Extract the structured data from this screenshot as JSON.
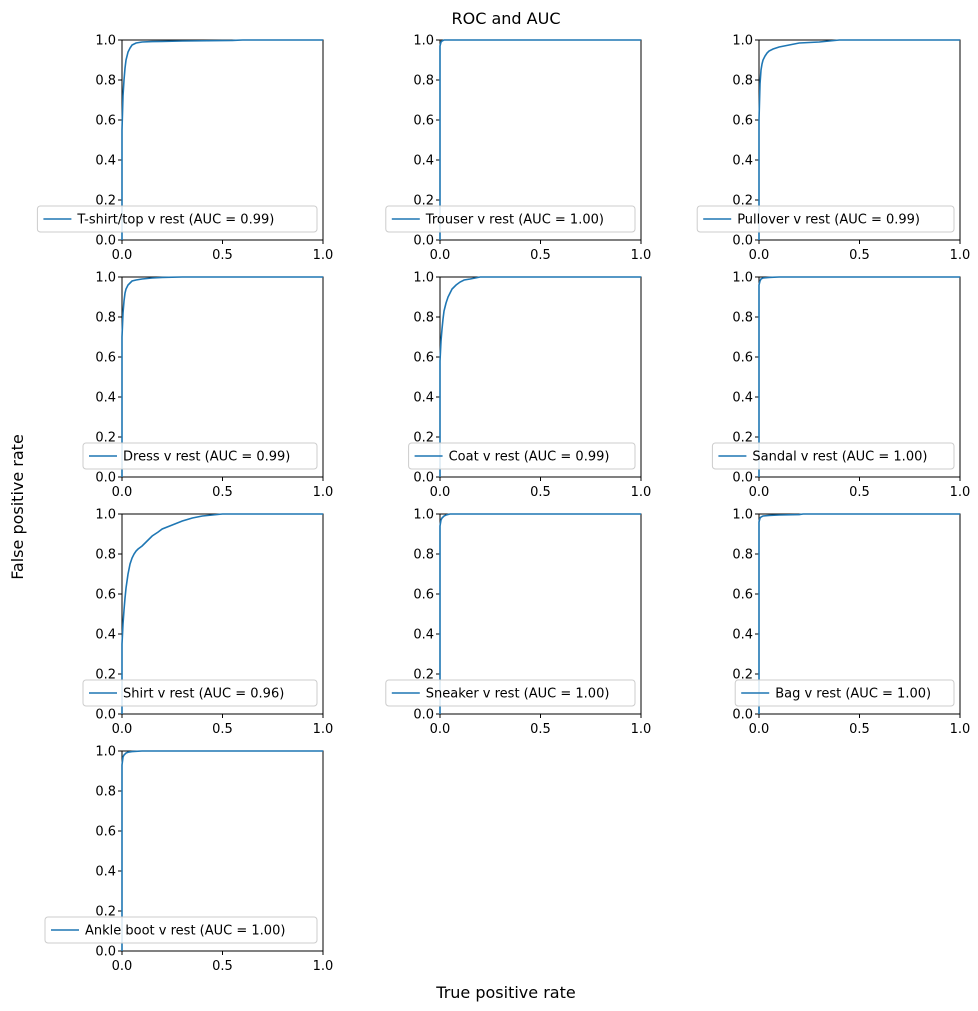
{
  "figure": {
    "title": "ROC and AUC",
    "xlabel": "True positive rate",
    "ylabel": "False positive rate"
  },
  "colors": {
    "line": "#1f77b4",
    "axes": "#000000",
    "legend_border": "#cccccc"
  },
  "chart_data": [
    {
      "type": "line",
      "series": [
        {
          "name": "T-shirt/top v rest (AUC = 0.99)",
          "x": [
            0,
            0,
            0.005,
            0.01,
            0.015,
            0.02,
            0.03,
            0.04,
            0.05,
            0.07,
            0.1,
            0.15,
            0.2,
            0.3,
            0.55,
            0.6,
            1.0
          ],
          "y": [
            0,
            0.55,
            0.72,
            0.8,
            0.86,
            0.9,
            0.94,
            0.96,
            0.975,
            0.985,
            0.99,
            0.992,
            0.993,
            0.995,
            0.998,
            1.0,
            1.0
          ]
        }
      ],
      "xlim": [
        0,
        1
      ],
      "ylim": [
        0,
        1
      ],
      "xticks": [
        "0.0",
        "0.5",
        "1.0"
      ],
      "yticks": [
        "0.0",
        "0.2",
        "0.4",
        "0.6",
        "0.8",
        "1.0"
      ],
      "legend_placement": "lower-right"
    },
    {
      "type": "line",
      "series": [
        {
          "name": "Trouser v rest (AUC = 1.00)",
          "x": [
            0,
            0,
            0.005,
            0.01,
            0.02,
            1.0
          ],
          "y": [
            0,
            0.97,
            0.99,
            0.995,
            1.0,
            1.0
          ]
        }
      ],
      "xlim": [
        0,
        1
      ],
      "ylim": [
        0,
        1
      ],
      "xticks": [
        "0.0",
        "0.5",
        "1.0"
      ],
      "yticks": [
        "0.0",
        "0.2",
        "0.4",
        "0.6",
        "0.8",
        "1.0"
      ],
      "legend_placement": "lower-right"
    },
    {
      "type": "line",
      "series": [
        {
          "name": "Pullover v rest (AUC = 0.99)",
          "x": [
            0,
            0,
            0.005,
            0.01,
            0.015,
            0.02,
            0.03,
            0.04,
            0.05,
            0.07,
            0.1,
            0.15,
            0.2,
            0.3,
            0.35,
            0.4,
            1.0
          ],
          "y": [
            0,
            0.6,
            0.78,
            0.85,
            0.88,
            0.9,
            0.92,
            0.935,
            0.945,
            0.955,
            0.965,
            0.975,
            0.985,
            0.99,
            0.995,
            1.0,
            1.0
          ]
        }
      ],
      "xlim": [
        0,
        1
      ],
      "ylim": [
        0,
        1
      ],
      "xticks": [
        "0.0",
        "0.5",
        "1.0"
      ],
      "yticks": [
        "0.0",
        "0.2",
        "0.4",
        "0.6",
        "0.8",
        "1.0"
      ],
      "legend_placement": "lower-right"
    },
    {
      "type": "line",
      "series": [
        {
          "name": "Dress v rest (AUC = 0.99)",
          "x": [
            0,
            0,
            0.005,
            0.01,
            0.015,
            0.02,
            0.03,
            0.04,
            0.05,
            0.07,
            0.1,
            0.15,
            0.2,
            0.3,
            1.0
          ],
          "y": [
            0,
            0.7,
            0.82,
            0.88,
            0.92,
            0.94,
            0.96,
            0.97,
            0.98,
            0.985,
            0.99,
            0.995,
            0.998,
            1.0,
            1.0
          ]
        }
      ],
      "xlim": [
        0,
        1
      ],
      "ylim": [
        0,
        1
      ],
      "xticks": [
        "0.0",
        "0.5",
        "1.0"
      ],
      "yticks": [
        "0.0",
        "0.2",
        "0.4",
        "0.6",
        "0.8",
        "1.0"
      ],
      "legend_placement": "lower-right"
    },
    {
      "type": "line",
      "series": [
        {
          "name": "Coat v rest (AUC = 0.99)",
          "x": [
            0,
            0,
            0.005,
            0.01,
            0.015,
            0.02,
            0.03,
            0.04,
            0.05,
            0.06,
            0.08,
            0.1,
            0.12,
            0.15,
            0.2,
            1.0
          ],
          "y": [
            0,
            0.58,
            0.68,
            0.74,
            0.79,
            0.83,
            0.87,
            0.9,
            0.92,
            0.94,
            0.96,
            0.975,
            0.985,
            0.99,
            1.0,
            1.0
          ]
        }
      ],
      "xlim": [
        0,
        1
      ],
      "ylim": [
        0,
        1
      ],
      "xticks": [
        "0.0",
        "0.5",
        "1.0"
      ],
      "yticks": [
        "0.0",
        "0.2",
        "0.4",
        "0.6",
        "0.8",
        "1.0"
      ],
      "legend_placement": "lower-right"
    },
    {
      "type": "line",
      "series": [
        {
          "name": "Sandal v rest (AUC = 1.00)",
          "x": [
            0,
            0,
            0.005,
            0.01,
            0.02,
            0.05,
            0.1,
            1.0
          ],
          "y": [
            0,
            0.96,
            0.98,
            0.99,
            0.995,
            0.998,
            1.0,
            1.0
          ]
        }
      ],
      "xlim": [
        0,
        1
      ],
      "ylim": [
        0,
        1
      ],
      "xticks": [
        "0.0",
        "0.5",
        "1.0"
      ],
      "yticks": [
        "0.0",
        "0.2",
        "0.4",
        "0.6",
        "0.8",
        "1.0"
      ],
      "legend_placement": "lower-right"
    },
    {
      "type": "line",
      "series": [
        {
          "name": "Shirt v rest (AUC = 0.96)",
          "x": [
            0,
            0,
            0.005,
            0.01,
            0.015,
            0.02,
            0.03,
            0.04,
            0.05,
            0.06,
            0.07,
            0.08,
            0.1,
            0.12,
            0.15,
            0.18,
            0.2,
            0.25,
            0.3,
            0.35,
            0.4,
            0.45,
            0.5,
            1.0
          ],
          "y": [
            0,
            0.35,
            0.45,
            0.52,
            0.58,
            0.63,
            0.7,
            0.75,
            0.78,
            0.8,
            0.815,
            0.825,
            0.84,
            0.86,
            0.89,
            0.91,
            0.925,
            0.945,
            0.965,
            0.98,
            0.99,
            0.995,
            1.0,
            1.0
          ]
        }
      ],
      "xlim": [
        0,
        1
      ],
      "ylim": [
        0,
        1
      ],
      "xticks": [
        "0.0",
        "0.5",
        "1.0"
      ],
      "yticks": [
        "0.0",
        "0.2",
        "0.4",
        "0.6",
        "0.8",
        "1.0"
      ],
      "legend_placement": "lower-right"
    },
    {
      "type": "line",
      "series": [
        {
          "name": "Sneaker v rest (AUC = 1.00)",
          "x": [
            0,
            0,
            0.005,
            0.01,
            0.02,
            0.03,
            0.05,
            1.0
          ],
          "y": [
            0,
            0.94,
            0.97,
            0.98,
            0.99,
            0.995,
            1.0,
            1.0
          ]
        }
      ],
      "xlim": [
        0,
        1
      ],
      "ylim": [
        0,
        1
      ],
      "xticks": [
        "0.0",
        "0.5",
        "1.0"
      ],
      "yticks": [
        "0.0",
        "0.2",
        "0.4",
        "0.6",
        "0.8",
        "1.0"
      ],
      "legend_placement": "lower-right"
    },
    {
      "type": "line",
      "series": [
        {
          "name": "Bag v rest (AUC = 1.00)",
          "x": [
            0,
            0,
            0.005,
            0.01,
            0.02,
            0.05,
            0.1,
            0.2,
            0.22,
            1.0
          ],
          "y": [
            0,
            0.96,
            0.98,
            0.985,
            0.99,
            0.993,
            0.995,
            0.997,
            1.0,
            1.0
          ]
        }
      ],
      "xlim": [
        0,
        1
      ],
      "ylim": [
        0,
        1
      ],
      "xticks": [
        "0.0",
        "0.5",
        "1.0"
      ],
      "yticks": [
        "0.0",
        "0.2",
        "0.4",
        "0.6",
        "0.8",
        "1.0"
      ],
      "legend_placement": "lower-right"
    },
    {
      "type": "line",
      "series": [
        {
          "name": "Ankle boot v rest (AUC = 1.00)",
          "x": [
            0,
            0,
            0.005,
            0.01,
            0.02,
            0.03,
            0.05,
            0.1,
            1.0
          ],
          "y": [
            0,
            0.93,
            0.97,
            0.98,
            0.99,
            0.994,
            0.997,
            1.0,
            1.0
          ]
        }
      ],
      "xlim": [
        0,
        1
      ],
      "ylim": [
        0,
        1
      ],
      "xticks": [
        "0.0",
        "0.5",
        "1.0"
      ],
      "yticks": [
        "0.0",
        "0.2",
        "0.4",
        "0.6",
        "0.8",
        "1.0"
      ],
      "legend_placement": "lower-right"
    }
  ]
}
